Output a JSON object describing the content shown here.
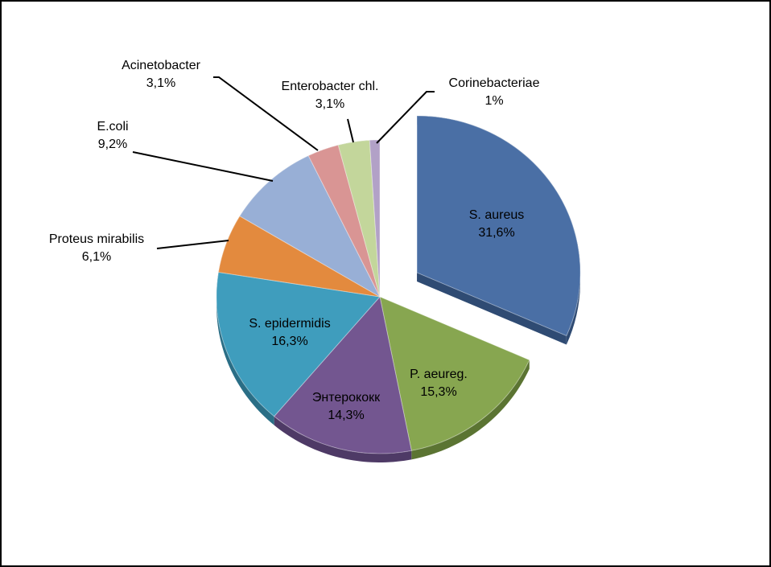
{
  "chart_data": {
    "type": "pie",
    "title": "",
    "slices": [
      {
        "name": "S. aureus",
        "value_label": "31,6%",
        "value": 31.6,
        "color": "#4A6FA5",
        "side": "#2F4B73",
        "exploded": true
      },
      {
        "name": "P. aeureg.",
        "value_label": "15,3%",
        "value": 15.3,
        "color": "#87A650",
        "side": "#5B7432",
        "exploded": false
      },
      {
        "name": "Энтерококк",
        "value_label": "14,3%",
        "value": 14.3,
        "color": "#735690",
        "side": "#4E3A66",
        "exploded": false
      },
      {
        "name": "S. epidermidis",
        "value_label": "16,3%",
        "value": 16.3,
        "color": "#3F9DBD",
        "side": "#2A6E86",
        "exploded": false
      },
      {
        "name": "Proteus mirabilis",
        "value_label": "6,1%",
        "value": 6.1,
        "color": "#E38A3E",
        "side": "#A85F24",
        "exploded": false
      },
      {
        "name": "E.coli",
        "value_label": "9,2%",
        "value": 9.2,
        "color": "#98AFD6",
        "side": "#6A80A8",
        "exploded": false
      },
      {
        "name": "Acinetobacter",
        "value_label": "3,1%",
        "value": 3.1,
        "color": "#D99594",
        "side": "#A66463",
        "exploded": false
      },
      {
        "name": "Enterobacter chl.",
        "value_label": "3,1%",
        "value": 3.1,
        "color": "#C3D69B",
        "side": "#8FA36A",
        "exploded": false
      },
      {
        "name": "Corinebacteriae",
        "value_label": "1%",
        "value": 1.0,
        "color": "#B2A1C7",
        "side": "#7F6F94",
        "exploded": false
      }
    ]
  }
}
